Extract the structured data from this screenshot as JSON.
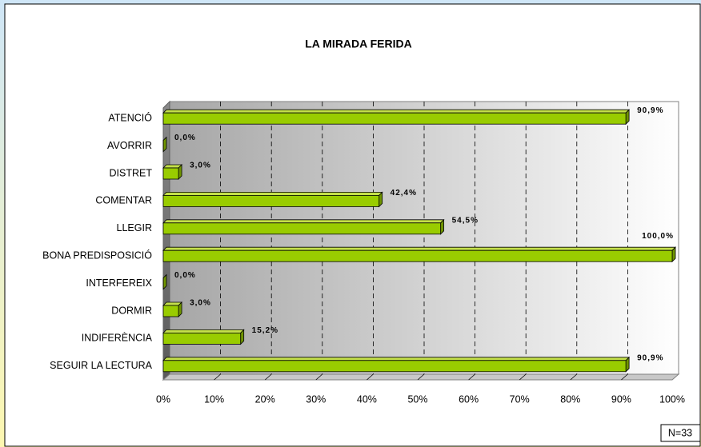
{
  "chart_data": {
    "type": "bar",
    "orientation": "horizontal",
    "title": "LA MIRADA FERIDA",
    "categories": [
      "ATENCIÓ",
      "AVORRIR",
      "DISTRET",
      "COMENTAR",
      "LLEGIR",
      "BONA PREDISPOSICIÓ",
      "INTERFEREIX",
      "DORMIR",
      "INDIFERÈNCIA",
      "SEGUIR LA LECTURA"
    ],
    "values": [
      90.9,
      0,
      3,
      42.4,
      54.5,
      100,
      0,
      3,
      15.2,
      90.9
    ],
    "value_labels": [
      "90,9%",
      "0,0%",
      "3,0%",
      "42,4%",
      "54,5%",
      "100,0%",
      "0,0%",
      "3,0%",
      "15,2%",
      "90,9%"
    ],
    "color": "#99cc00",
    "xlim": [
      0,
      100
    ],
    "xticks": [
      {
        "value": 0,
        "label": "0%"
      },
      {
        "value": 10,
        "label": "10%"
      },
      {
        "value": 20,
        "label": "20%"
      },
      {
        "value": 30,
        "label": "30%"
      },
      {
        "value": 40,
        "label": "40%"
      },
      {
        "value": 50,
        "label": "50%"
      },
      {
        "value": 60,
        "label": "60%"
      },
      {
        "value": 70,
        "label": "70%"
      },
      {
        "value": 80,
        "label": "80%"
      },
      {
        "value": 90,
        "label": "90%"
      },
      {
        "value": 100,
        "label": "100%"
      }
    ],
    "grid": true,
    "annotation": "N=33"
  }
}
